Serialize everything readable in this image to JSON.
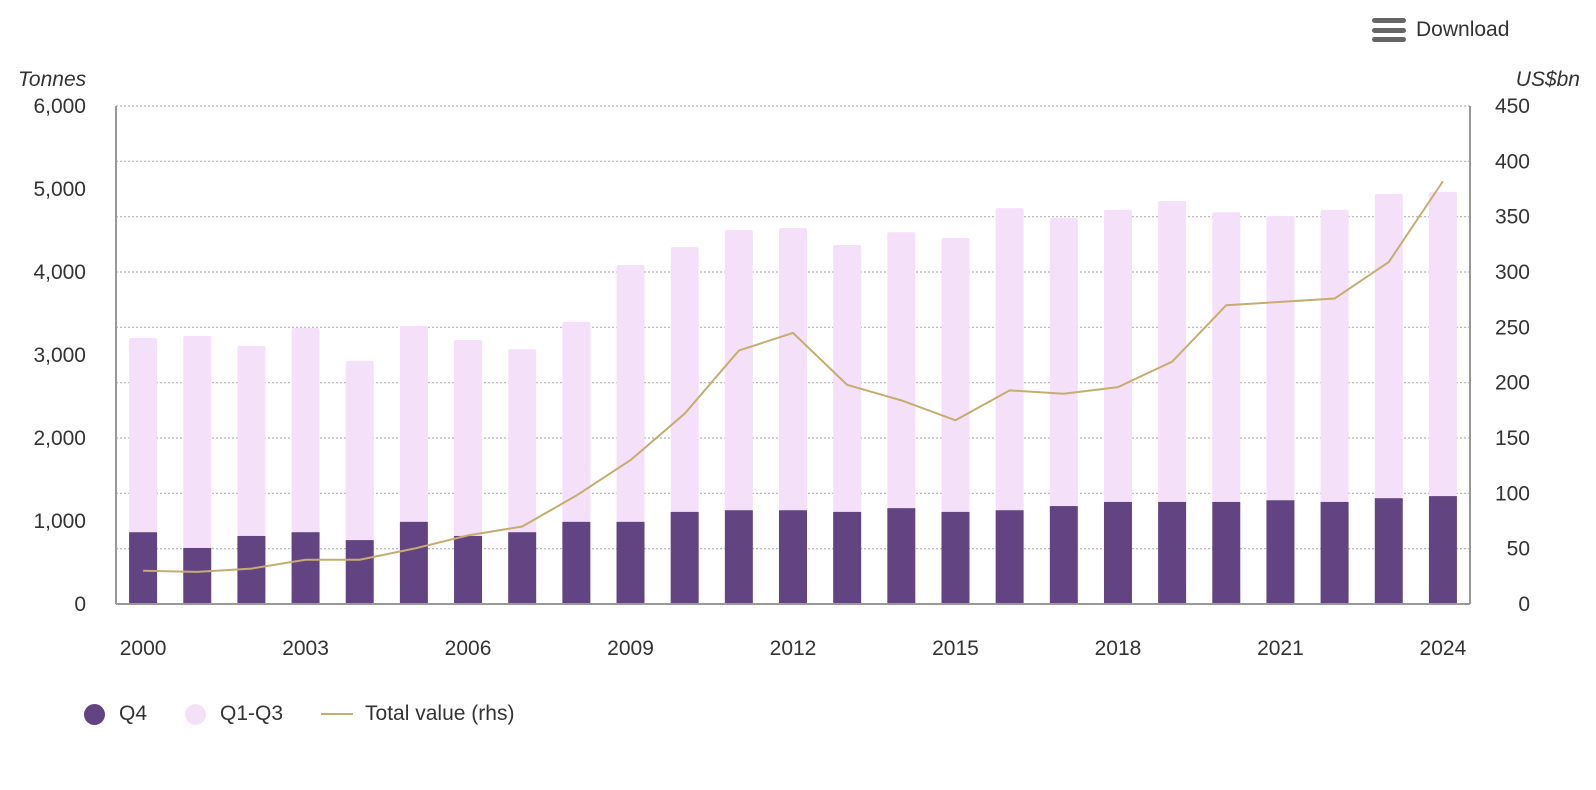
{
  "toolbar": {
    "download_label": "Download",
    "menu_icon": "hamburger-menu-icon"
  },
  "colors": {
    "q4": "#634482",
    "q1q3": "#f4e1f9",
    "line": "#c7ac6f",
    "grid": "#b3b3b3",
    "axis": "#999999"
  },
  "chart_data": {
    "type": "bar",
    "stacked": true,
    "title": "",
    "left_unit": "Tonnes",
    "right_unit": "US$bn",
    "xlabel": "",
    "ylabel": "Tonnes",
    "y2label": "US$bn",
    "ylim": [
      0,
      6000
    ],
    "y2lim": [
      0,
      450
    ],
    "yticks": [
      "0",
      "1,000",
      "2,000",
      "3,000",
      "4,000",
      "5,000",
      "6,000"
    ],
    "y2ticks": [
      "0",
      "50",
      "100",
      "150",
      "200",
      "250",
      "300",
      "350",
      "400",
      "450"
    ],
    "xtick_labels": [
      "2000",
      "2003",
      "2006",
      "2009",
      "2012",
      "2015",
      "2018",
      "2021",
      "2024"
    ],
    "grid": true,
    "legend_position": "bottom-left",
    "categories": [
      "2000",
      "2001",
      "2002",
      "2003",
      "2004",
      "2005",
      "2006",
      "2007",
      "2008",
      "2009",
      "2010",
      "2011",
      "2012",
      "2013",
      "2014",
      "2015",
      "2016",
      "2017",
      "2018",
      "2019",
      "2020",
      "2021",
      "2022",
      "2023",
      "2024"
    ],
    "series": [
      {
        "name": "Q4",
        "type": "bar",
        "axis": "left",
        "values": [
          865,
          675,
          820,
          865,
          770,
          990,
          820,
          865,
          990,
          990,
          1110,
          1130,
          1130,
          1110,
          1155,
          1110,
          1130,
          1180,
          1230,
          1230,
          1230,
          1250,
          1230,
          1275,
          1300
        ]
      },
      {
        "name": "Q1-Q3",
        "type": "bar",
        "axis": "left",
        "values": [
          2340,
          2555,
          2290,
          2460,
          2160,
          2360,
          2360,
          2205,
          2410,
          3095,
          3190,
          3375,
          3400,
          3215,
          3325,
          3300,
          3640,
          3470,
          3520,
          3625,
          3490,
          3425,
          3520,
          3665,
          3665
        ]
      },
      {
        "name": "Total value (rhs)",
        "type": "line",
        "axis": "right",
        "values": [
          30,
          29,
          32,
          40,
          40,
          50,
          62,
          70,
          98,
          130,
          172,
          229,
          245,
          198,
          184,
          166,
          193,
          190,
          196,
          219,
          270,
          273,
          276,
          309,
          382
        ]
      }
    ]
  },
  "legend": [
    {
      "label": "Q4",
      "kind": "dot"
    },
    {
      "label": "Q1-Q3",
      "kind": "dot"
    },
    {
      "label": "Total value (rhs)",
      "kind": "line"
    }
  ]
}
